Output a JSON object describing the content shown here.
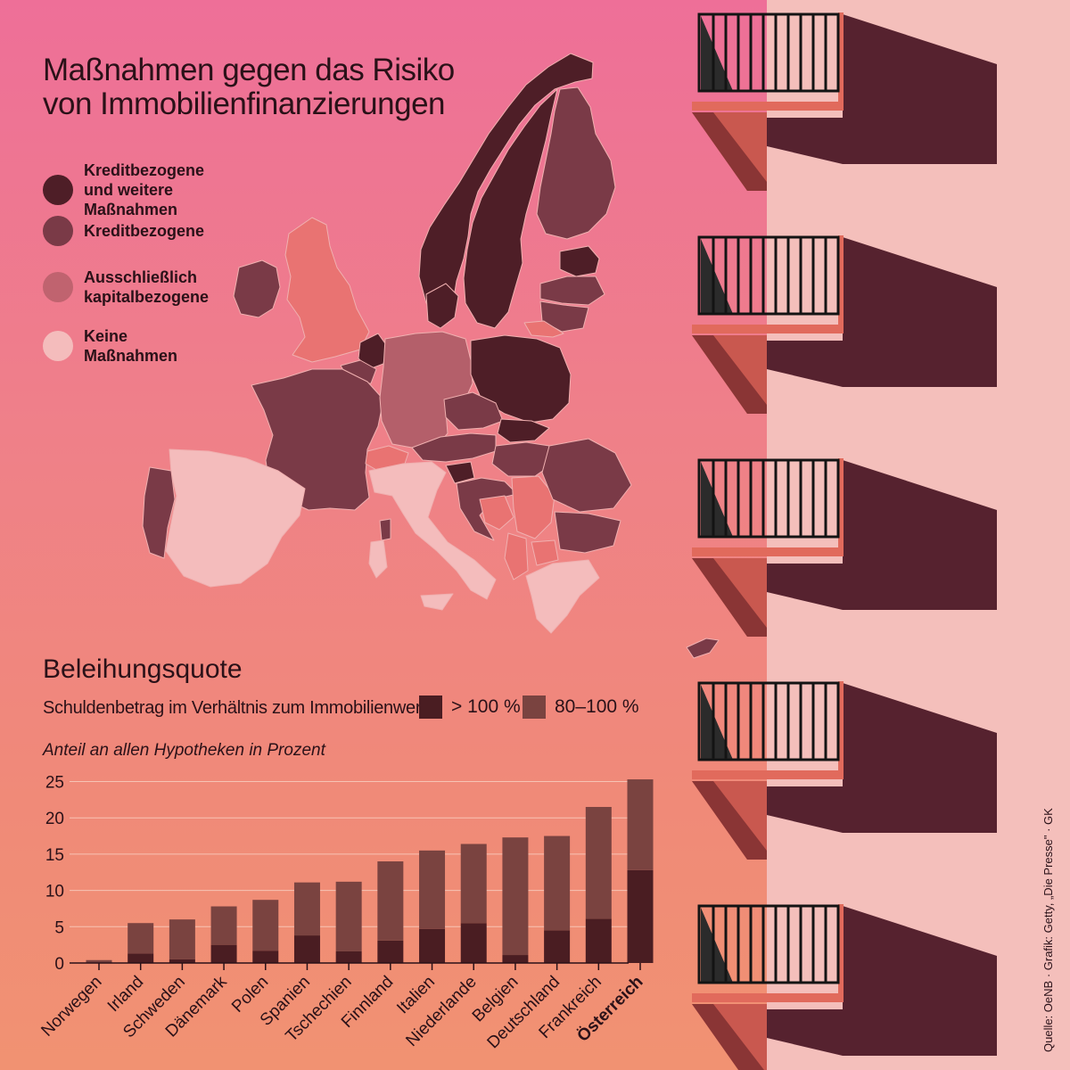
{
  "title_line1": "Maßnahmen gegen das Risiko",
  "title_line2": "von Immobilienfinanzierungen",
  "map_legend": [
    {
      "label": "Kreditbezogene und weitere Maßnahmen",
      "color": "#4e1e27"
    },
    {
      "label": "Kreditbezogene",
      "color": "#7a3a47"
    },
    {
      "label": "Ausschließlich kapitalbezogene",
      "color": "#c0636f"
    },
    {
      "label": "Keine Maßnahmen",
      "color": "#f4bcbc"
    }
  ],
  "map_extra_colors": {
    "salmon": "#e97372",
    "mauve": "#b45f6a"
  },
  "section_title": "Beleihungsquote",
  "section_subtitle": "Schuldenbetrag im Verhältnis zum Immobilienwert",
  "series_legend": [
    {
      "label": "> 100 %",
      "color": "#4a1d22"
    },
    {
      "label": "80–100 %",
      "color": "#7a4340"
    }
  ],
  "unit_note": "Anteil an allen Hypotheken in Prozent",
  "source": "Quelle: OeNB · Grafik: Getty, „Die Presse\" · GK",
  "chart_data": {
    "type": "bar",
    "stacked": true,
    "categories": [
      "Norwegen",
      "Irland",
      "Schweden",
      "Dänemark",
      "Polen",
      "Spanien",
      "Tschechien",
      "Finnland",
      "Italien",
      "Niederlande",
      "Belgien",
      "Deutschland",
      "Frankreich",
      "Österreich"
    ],
    "highlight_category": "Österreich",
    "series": [
      {
        "name": "> 100 %",
        "color": "#4a1d22",
        "values": [
          0.0,
          1.3,
          0.5,
          2.5,
          1.7,
          3.8,
          1.6,
          3.1,
          4.7,
          5.5,
          1.1,
          4.5,
          6.1,
          12.8
        ]
      },
      {
        "name": "80–100 %",
        "color": "#7a4340",
        "values": [
          0.4,
          4.2,
          5.5,
          5.3,
          7.0,
          7.3,
          9.6,
          10.9,
          10.8,
          10.9,
          16.2,
          13.0,
          15.4,
          12.5
        ]
      }
    ],
    "yticks": [
      0,
      5,
      10,
      15,
      20,
      25
    ],
    "ylim": [
      0,
      26
    ],
    "grid": true
  }
}
